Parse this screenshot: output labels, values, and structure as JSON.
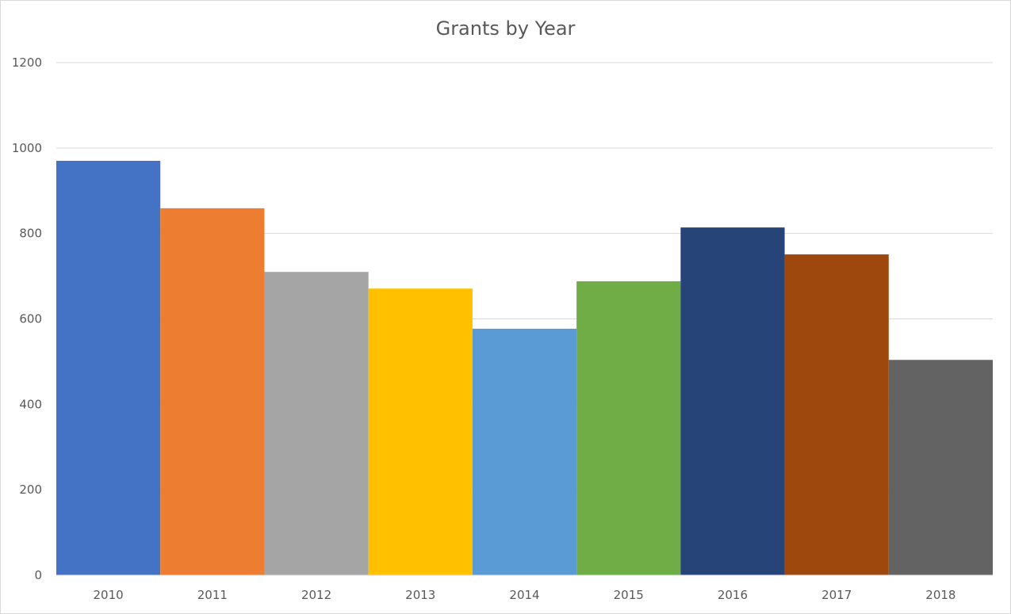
{
  "chart_data": {
    "type": "bar",
    "title": "Grants by Year",
    "xlabel": "",
    "ylabel": "",
    "categories": [
      "2010",
      "2011",
      "2012",
      "2013",
      "2014",
      "2015",
      "2016",
      "2017",
      "2018"
    ],
    "values": [
      970,
      859,
      710,
      671,
      577,
      688,
      814,
      751,
      504
    ],
    "colors": [
      "#4472c4",
      "#ed7d31",
      "#a5a5a5",
      "#ffc000",
      "#5b9bd5",
      "#70ad47",
      "#264478",
      "#9e480e",
      "#636363"
    ],
    "ylim": [
      0,
      1200
    ],
    "yticks": [
      "0",
      "200",
      "400",
      "600",
      "800",
      "1000",
      "1200"
    ],
    "grid": true,
    "legend": "none"
  }
}
